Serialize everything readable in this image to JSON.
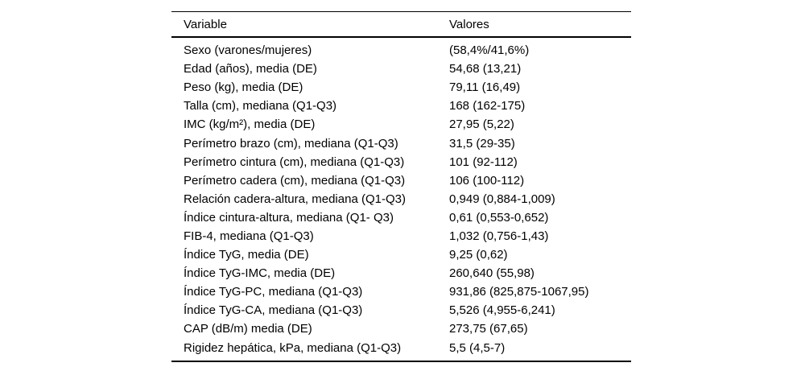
{
  "table": {
    "headers": {
      "variable": "Variable",
      "values": "Valores"
    },
    "rows": [
      {
        "variable": "Sexo (varones/mujeres)",
        "value": "(58,4%/41,6%)"
      },
      {
        "variable": "Edad (años), media (DE)",
        "value": "54,68 (13,21)"
      },
      {
        "variable": "Peso (kg), media (DE)",
        "value": "79,11 (16,49)"
      },
      {
        "variable": "Talla (cm), mediana (Q1-Q3)",
        "value": "168 (162-175)"
      },
      {
        "variable": "IMC (kg/m²), media (DE)",
        "value": "27,95 (5,22)"
      },
      {
        "variable": "Perímetro brazo (cm), mediana (Q1-Q3)",
        "value": "31,5 (29-35)"
      },
      {
        "variable": "Perímetro cintura (cm), mediana (Q1-Q3)",
        "value": "101 (92-112)"
      },
      {
        "variable": "Perímetro cadera (cm), mediana (Q1-Q3)",
        "value": "106 (100-112)"
      },
      {
        "variable": "Relación cadera-altura, mediana (Q1-Q3)",
        "value": "0,949 (0,884-1,009)"
      },
      {
        "variable": "Índice cintura-altura, mediana (Q1- Q3)",
        "value": "0,61 (0,553-0,652)"
      },
      {
        "variable": "FIB-4, mediana (Q1-Q3)",
        "value": "1,032 (0,756-1,43)"
      },
      {
        "variable": "Índice TyG, media (DE)",
        "value": "9,25 (0,62)"
      },
      {
        "variable": "Índice TyG-IMC, media (DE)",
        "value": "260,640 (55,98)"
      },
      {
        "variable": "Índice TyG-PC, mediana (Q1-Q3)",
        "value": "931,86 (825,875-1067,95)"
      },
      {
        "variable": "Índice TyG-CA, mediana (Q1-Q3)",
        "value": "5,526 (4,955-6,241)"
      },
      {
        "variable": "CAP (dB/m) media (DE)",
        "value": "273,75 (67,65)"
      },
      {
        "variable": "Rigidez hepática, kPa, mediana (Q1-Q3)",
        "value": "5,5 (4,5-7)"
      }
    ]
  }
}
